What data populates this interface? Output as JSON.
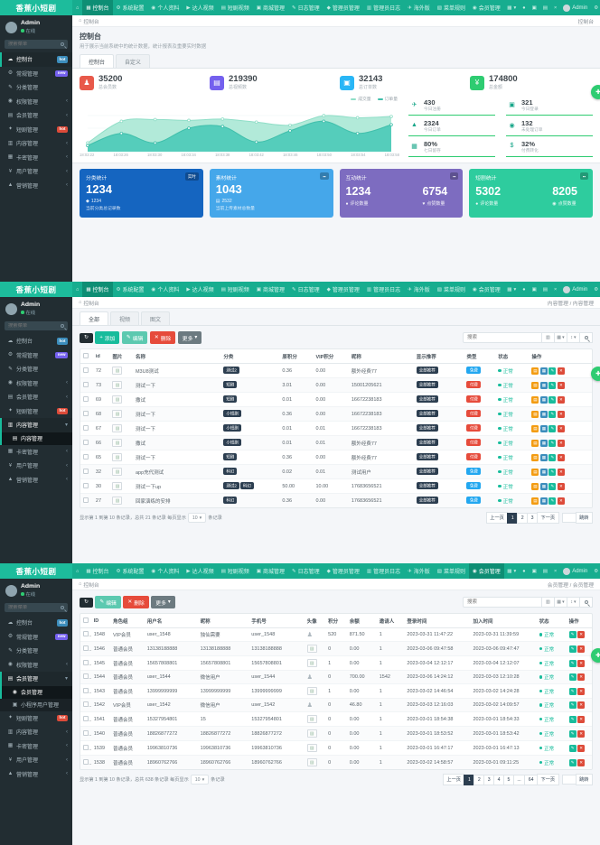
{
  "app": {
    "logo": "香蕉小短剧",
    "float_icon": "✚"
  },
  "navbar": {
    "home_icon": "⌂",
    "caret": "▾",
    "user": "Admin",
    "gear_icon": "⚙",
    "items": [
      {
        "icon": "▦",
        "label": "控制台"
      },
      {
        "icon": "⚙",
        "label": "系统配置"
      },
      {
        "icon": "◉",
        "label": "个人资料"
      },
      {
        "icon": "▶",
        "label": "达人视频"
      },
      {
        "icon": "▤",
        "label": "短剧视频"
      },
      {
        "icon": "▣",
        "label": "商城管理"
      },
      {
        "icon": "✎",
        "label": "日志管理"
      },
      {
        "icon": "◆",
        "label": "管理员管理"
      },
      {
        "icon": "▥",
        "label": "管理员日志"
      },
      {
        "icon": "✈",
        "label": "海外版"
      },
      {
        "icon": "▧",
        "label": "菜单规则"
      },
      {
        "icon": "◉",
        "label": "会员管理"
      }
    ],
    "right_icons": [
      {
        "name": "apps-menu-icon",
        "glyph": "▦",
        "caret": true
      },
      {
        "name": "bell-icon",
        "glyph": "●"
      },
      {
        "name": "message-icon",
        "glyph": "▣"
      },
      {
        "name": "tasks-icon",
        "glyph": "▤"
      },
      {
        "name": "fullscreen-exit-icon",
        "glyph": "×"
      }
    ]
  },
  "sidebar": {
    "user": "Admin",
    "status": "在线",
    "search_placeholder": "搜索菜单",
    "chev_collapsed": "‹",
    "chev_expanded": "▾",
    "items": [
      {
        "icon": "☁",
        "label": "控制台",
        "badge": "hot",
        "badge_color": "blue"
      },
      {
        "icon": "⚙",
        "label": "常规管理",
        "badge": "new",
        "badge_color": "purple"
      },
      {
        "icon": "✎",
        "label": "分类管理"
      },
      {
        "icon": "◉",
        "label": "权限管理",
        "chevron": true
      },
      {
        "icon": "▤",
        "label": "会员管理",
        "chevron": true,
        "children": [
          {
            "icon": "◉",
            "label": "会员管理"
          },
          {
            "icon": "▣",
            "label": "小程序用户管理"
          }
        ]
      },
      {
        "icon": "✦",
        "label": "短剧管理",
        "badge": "hot",
        "badge_color": "red"
      },
      {
        "icon": "▥",
        "label": "内容管理",
        "chevron": true,
        "children": [
          {
            "icon": "▤",
            "label": "内容管理"
          }
        ]
      },
      {
        "icon": "▦",
        "label": "卡密管理",
        "chevron": true
      },
      {
        "icon": "¥",
        "label": "用户管理",
        "chevron": true
      },
      {
        "icon": "▲",
        "label": "营销管理",
        "chevron": true
      }
    ]
  },
  "table_icons": {
    "filter": "▥",
    "columns": "▦",
    "sort": "↕"
  },
  "chart_data": {
    "type": "area",
    "title": "",
    "xlabel": "",
    "ylabel": "",
    "ylim": [
      0,
      100
    ],
    "grid": true,
    "legend_position": "top-right",
    "x": [
      "18:03:22",
      "18:03:26",
      "18:03:30",
      "18:03:34",
      "18:03:38",
      "18:03:42",
      "18:03:46",
      "18:03:50",
      "18:03:54",
      "18:03:58"
    ],
    "series": [
      {
        "name": "成交量",
        "fill": "#b2ead9",
        "line": "#8fdec7",
        "values": [
          16,
          66,
          70,
          68,
          71,
          64,
          57,
          79,
          74,
          77
        ]
      },
      {
        "name": "订单量",
        "fill": "#55cdbb",
        "line": "#40bfab",
        "values": [
          10,
          38,
          16,
          50,
          54,
          18,
          44,
          66,
          38,
          58
        ]
      }
    ]
  },
  "panels": [
    {
      "type": "dashboard",
      "nav_active": 0,
      "sidebar_state": {
        "active": 0
      },
      "breadcrumb": {
        "left": "控制台",
        "right": "控制台"
      },
      "heading": {
        "title": "控制台",
        "subtitle": "用于展示当前系统中的统计数据，统计报表及重要实时数据"
      },
      "tabs": [
        {
          "label": "控制台",
          "active": true
        },
        {
          "label": "自定义"
        }
      ],
      "stat_cards": [
        {
          "icon": "♟",
          "color": "#e8594a",
          "value": "35200",
          "label": "总会员数"
        },
        {
          "icon": "▤",
          "color": "#7460ee",
          "value": "219390",
          "label": "总视频数"
        },
        {
          "icon": "▣",
          "color": "#29b6f6",
          "value": "32143",
          "label": "总订单数"
        },
        {
          "icon": "¥",
          "color": "#2ecc71",
          "value": "174800",
          "label": "总金额"
        }
      ],
      "side_stats": [
        {
          "icon": "✈",
          "value": "430",
          "label": "今日注册"
        },
        {
          "icon": "▣",
          "value": "321",
          "label": "今日登录"
        },
        {
          "icon": "▲",
          "value": "2324",
          "label": "今日订单"
        },
        {
          "icon": "◉",
          "value": "132",
          "label": "未处理订单"
        },
        {
          "icon": "▦",
          "value": "80%",
          "label": "七日留存"
        },
        {
          "icon": "$",
          "value": "32%",
          "label": "付费转化"
        }
      ],
      "big_cards": [
        {
          "color": "#1565c0",
          "title": "分类统计",
          "badge": "实时",
          "value": "1234",
          "sub_icon": "◆",
          "sub_value": "1234",
          "caption": "当前分类总记录数"
        },
        {
          "color": "#45a7ea",
          "title": "素材统计",
          "badge": "▪▪",
          "value": "1043",
          "sub_icon": "▤",
          "sub_value": "2532",
          "caption": "当前上传素材总数量"
        },
        {
          "color": "#7d6cc0",
          "title": "互动统计",
          "badge": "▪▪",
          "cols": [
            {
              "value": "1234",
              "icon": "●",
              "label": "评论数量"
            },
            {
              "value": "6754",
              "icon": "♥",
              "label": "点赞数量"
            }
          ]
        },
        {
          "color": "#2ecc9e",
          "title": "短剧统计",
          "badge": "▪▪",
          "cols": [
            {
              "value": "5302",
              "icon": "●",
              "label": "评论数量"
            },
            {
              "value": "8205",
              "icon": "◉",
              "label": "点赞数量"
            }
          ]
        }
      ]
    },
    {
      "type": "table",
      "nav_active": 0,
      "sidebar_state": {
        "expanded": 6,
        "active_child": 0
      },
      "breadcrumb": {
        "left": "控制台",
        "right": "内容管理 / 内容管理"
      },
      "tabs": [
        {
          "label": "全部",
          "active": true
        },
        {
          "label": "视频"
        },
        {
          "label": "图文"
        }
      ],
      "toolbar": [
        {
          "glyph": "↻",
          "style": "dark",
          "label": "",
          "icon_name": "refresh-icon"
        },
        {
          "glyph": "+",
          "style": "green",
          "label": "添加",
          "icon_name": "plus-icon"
        },
        {
          "glyph": "✎",
          "style": "lgreen",
          "label": "编辑",
          "icon_name": "edit-icon"
        },
        {
          "glyph": "✕",
          "style": "red",
          "label": "删除",
          "icon_name": "trash-icon"
        },
        {
          "glyph": "",
          "style": "gray",
          "label": "更多",
          "caret": true
        }
      ],
      "search_placeholder": "搜索",
      "row_ops": [
        {
          "glyph": "▤",
          "style": "orange",
          "name": "detail-op-button"
        },
        {
          "glyph": "▦",
          "style": "blue",
          "name": "copy-op-button"
        },
        {
          "glyph": "✎",
          "style": "green",
          "name": "edit-op-button"
        },
        {
          "glyph": "✕",
          "style": "red",
          "name": "delete-op-button"
        }
      ],
      "table": {
        "img_icon": "▨",
        "columns": [
          "",
          "id",
          "图片",
          "名称",
          "分类",
          "原积分",
          "VIP积分",
          "昵称",
          "显示推荐",
          "类型",
          "状态",
          "操作"
        ],
        "status_label": "正常",
        "rows": [
          {
            "id": "72",
            "name": "M3U8测试",
            "cats": [
              "测试2"
            ],
            "score": "0.36",
            "vip": "0.00",
            "nick": "额外经费77",
            "rec": "全部推荐",
            "type": "免费",
            "type_color": "blue",
            "status": "正常"
          },
          {
            "id": "73",
            "name": "测试一下",
            "cats": [
              "短剧"
            ],
            "score": "3.01",
            "vip": "0.00",
            "nick": "15001205621",
            "rec": "全部推荐",
            "type": "付费",
            "type_color": "red",
            "status": "正常"
          },
          {
            "id": "69",
            "name": "撒试",
            "cats": [
              "短剧"
            ],
            "score": "0.01",
            "vip": "0.00",
            "nick": "16672238183",
            "rec": "全部推荐",
            "type": "付费",
            "type_color": "red",
            "status": "正常"
          },
          {
            "id": "68",
            "name": "测试一下",
            "cats": [
              "小短剧"
            ],
            "score": "0.36",
            "vip": "0.00",
            "nick": "16672238183",
            "rec": "全部推荐",
            "type": "付费",
            "type_color": "red",
            "status": "正常"
          },
          {
            "id": "67",
            "name": "测试一下",
            "cats": [
              "小短剧"
            ],
            "score": "0.01",
            "vip": "0.01",
            "nick": "16672238183",
            "rec": "全部推荐",
            "type": "付费",
            "type_color": "red",
            "status": "正常"
          },
          {
            "id": "66",
            "name": "撒试",
            "cats": [
              "小短剧"
            ],
            "score": "0.01",
            "vip": "0.01",
            "nick": "额外经费77",
            "rec": "全部推荐",
            "type": "付费",
            "type_color": "red",
            "status": "正常"
          },
          {
            "id": "65",
            "name": "测试一下",
            "cats": [
              "短剧"
            ],
            "score": "0.36",
            "vip": "0.00",
            "nick": "额外经费77",
            "rec": "全部推荐",
            "type": "付费",
            "type_color": "red",
            "status": "正常"
          },
          {
            "id": "32",
            "name": "app充代测试",
            "cats": [
              "科幻"
            ],
            "score": "0.02",
            "vip": "0.01",
            "nick": "测试用户",
            "rec": "全部推荐",
            "type": "免费",
            "type_color": "blue",
            "status": "正常"
          },
          {
            "id": "30",
            "name": "测试一下up",
            "cats": [
              "测试2",
              "科幻"
            ],
            "score": "50.00",
            "vip": "10.00",
            "nick": "17683656521",
            "rec": "全部推荐",
            "type": "免费",
            "type_color": "blue",
            "status": "正常"
          },
          {
            "id": "27",
            "name": "回家演练的安排",
            "cats": [
              "科幻"
            ],
            "score": "0.36",
            "vip": "0.00",
            "nick": "17683656521",
            "rec": "全部推荐",
            "type": "免费",
            "type_color": "blue",
            "status": "正常"
          }
        ]
      },
      "pagination": {
        "info": "显示第 1 到第 10 条记录，总共 21 条记录 每页显示",
        "per_page": "10",
        "info_suffix": "条记录",
        "pages": [
          "上一页",
          "1",
          "2",
          "3",
          "下一页"
        ],
        "active_page": "1",
        "jump_label": "跳转"
      }
    },
    {
      "type": "table",
      "nav_active": 11,
      "sidebar_state": {
        "expanded": 4,
        "active_child": 0
      },
      "breadcrumb": {
        "left": "控制台",
        "right": "会员管理 / 会员管理"
      },
      "toolbar": [
        {
          "glyph": "↻",
          "style": "dark",
          "label": "",
          "icon_name": "refresh-icon"
        },
        {
          "glyph": "✎",
          "style": "lgreen",
          "label": "编辑",
          "icon_name": "edit-icon"
        },
        {
          "glyph": "✕",
          "style": "red",
          "label": "删除",
          "icon_name": "trash-icon"
        },
        {
          "glyph": "",
          "style": "gray",
          "label": "更多",
          "caret": true
        }
      ],
      "search_placeholder": "搜索",
      "row_ops": [
        {
          "glyph": "✎",
          "style": "green",
          "name": "edit-op-button"
        },
        {
          "glyph": "✕",
          "style": "red",
          "name": "delete-op-button"
        }
      ],
      "table": {
        "img_icon": "▨",
        "user_icon": "♟",
        "columns": [
          "",
          "ID",
          "角色组",
          "用户名",
          "昵称",
          "手机号",
          "头像",
          "积分",
          "余额",
          "邀请人",
          "登录时间",
          "加入时间",
          "状态",
          "操作"
        ],
        "rows": [
          {
            "id": "1548",
            "role": "VIP会员",
            "username": "user_1548",
            "nick": "独仙需要",
            "phone": "user_1548",
            "avatar": "user",
            "score": "520",
            "balance": "871.50",
            "inviter": "1",
            "login_time": "2023-03-31 11:47:22",
            "join_time": "2023-03-31 11:39:59",
            "status": "正常"
          },
          {
            "id": "1546",
            "role": "普通会员",
            "username": "13138188888",
            "nick": "13138188888",
            "phone": "13138188888",
            "avatar": "broken",
            "score": "0",
            "balance": "0.00",
            "inviter": "1",
            "login_time": "2023-03-06 09:47:58",
            "join_time": "2023-03-06 09:47:47",
            "status": "正常"
          },
          {
            "id": "1545",
            "role": "普通会员",
            "username": "15657808801",
            "nick": "15657808801",
            "phone": "15657808801",
            "avatar": "broken",
            "score": "1",
            "balance": "0.00",
            "inviter": "1",
            "login_time": "2023-03-04 12:12:17",
            "join_time": "2023-03-04 12:12:07",
            "status": "正常"
          },
          {
            "id": "1544",
            "role": "普通会员",
            "username": "user_1544",
            "nick": "微信用户",
            "phone": "user_1544",
            "avatar": "user",
            "score": "0",
            "balance": "700.00",
            "inviter": "1542",
            "login_time": "2023-03-06 14:24:12",
            "join_time": "2023-03-03 12:10:28",
            "status": "正常"
          },
          {
            "id": "1543",
            "role": "普通会员",
            "username": "13999999999",
            "nick": "13999999999",
            "phone": "13999999999",
            "avatar": "broken",
            "score": "1",
            "balance": "0.00",
            "inviter": "1",
            "login_time": "2023-03-02 14:46:54",
            "join_time": "2023-03-02 14:24:28",
            "status": "正常"
          },
          {
            "id": "1542",
            "role": "VIP会员",
            "username": "user_1542",
            "nick": "微信用户",
            "phone": "user_1542",
            "avatar": "user",
            "score": "0",
            "balance": "46.80",
            "inviter": "1",
            "login_time": "2023-03-03 12:16:03",
            "join_time": "2023-03-02 14:09:57",
            "status": "正常"
          },
          {
            "id": "1541",
            "role": "普通会员",
            "username": "15327954801",
            "nick": "15",
            "phone": "15327954801",
            "avatar": "broken",
            "score": "0",
            "balance": "0.00",
            "inviter": "1",
            "login_time": "2023-03-01 18:54:38",
            "join_time": "2023-03-01 18:54:33",
            "status": "正常"
          },
          {
            "id": "1540",
            "role": "普通会员",
            "username": "18826877272",
            "nick": "18826877272",
            "phone": "18826877272",
            "avatar": "broken",
            "score": "0",
            "balance": "0.00",
            "inviter": "1",
            "login_time": "2023-03-01 18:53:52",
            "join_time": "2023-03-01 18:53:42",
            "status": "正常"
          },
          {
            "id": "1539",
            "role": "普通会员",
            "username": "19963810736",
            "nick": "19963810736",
            "phone": "19963810736",
            "avatar": "broken",
            "score": "0",
            "balance": "0.00",
            "inviter": "1",
            "login_time": "2023-03-01 16:47:17",
            "join_time": "2023-03-01 16:47:13",
            "status": "正常"
          },
          {
            "id": "1538",
            "role": "普通会员",
            "username": "18960762766",
            "nick": "18960762766",
            "phone": "18960762766",
            "avatar": "broken",
            "score": "0",
            "balance": "0.00",
            "inviter": "1",
            "login_time": "2023-03-02 14:58:57",
            "join_time": "2023-03-01 09:11:25",
            "status": "正常"
          }
        ]
      },
      "pagination": {
        "info": "显示第 1 到第 10 条记录，总共 638 条记录 每页显示",
        "per_page": "10",
        "info_suffix": "条记录",
        "pages": [
          "上一页",
          "1",
          "2",
          "3",
          "4",
          "5",
          "...",
          "64",
          "下一页"
        ],
        "active_page": "1",
        "jump_label": "跳转"
      }
    }
  ]
}
